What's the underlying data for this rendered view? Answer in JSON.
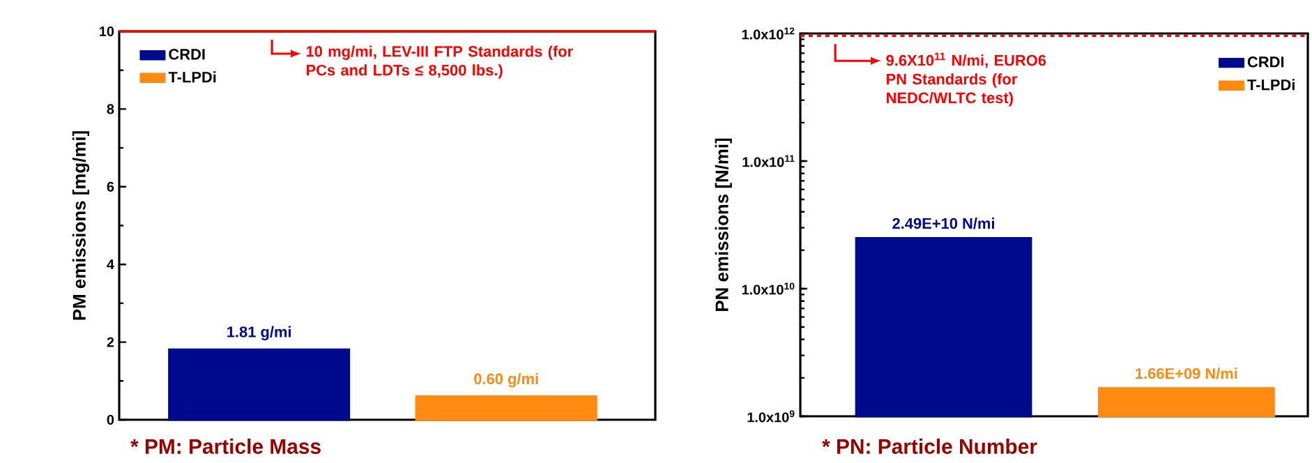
{
  "chart_data": [
    {
      "type": "bar",
      "ylabel": "PM emissions [mg/mi]",
      "categories": [
        null,
        null
      ],
      "series": [
        {
          "name": "CRDI",
          "color": "#000a8c",
          "values": [
            1.81,
            null
          ],
          "value_labels": [
            "1.81 g/mi",
            null
          ]
        },
        {
          "name": "T-LPDi",
          "color": "#ff8a12",
          "values": [
            null,
            0.6
          ],
          "value_labels": [
            null,
            "0.60 g/mi"
          ]
        }
      ],
      "ylim": [
        0,
        10
      ],
      "yticks": [
        0,
        2,
        4,
        6,
        8,
        10
      ],
      "ref_lines": [
        {
          "axis": "y",
          "value": 10,
          "label": "10 mg/mi, LEV-III FTP Standards (for PCs and LDTs ≤ 8,500 lbs.)",
          "color": "#ff0000",
          "line_style": "solid"
        }
      ],
      "annotations": [
        "* PM: Particle Mass"
      ],
      "legend": "top left"
    },
    {
      "type": "bar",
      "ylabel": "PN emissions [N/mi]",
      "categories": [
        null,
        null
      ],
      "series": [
        {
          "name": "CRDI",
          "color": "#000a8c",
          "values": [
            24900000000.0,
            null
          ]
        },
        {
          "name": "T-LPDi",
          "color": "#ff8a12",
          "values": [
            null,
            1660000000.0
          ]
        }
      ],
      "log": true,
      "ylim": [
        1000000000.0,
        1000000000000.0
      ],
      "yticks": [
        {
          "value": 1000000000.0,
          "label": "1.0x10$^{9}$"
        },
        {
          "value": 10000000000.0,
          "label": "1.0x10$^{10}$"
        },
        {
          "value": 100000000000.0,
          "label": "1.0x10$^{11}$"
        },
        {
          "value": 1000000000000.0,
          "label": "1.0x10$^{12}$"
        }
      ],
      "ref_lines": [
        {
          "axis": "y",
          "value": 960000000000.0,
          "label": "9.6X10$^{11}$ N/mi, EURO6 PN Standards (for NEDC/WLTC test)",
          "color": "#ff0000",
          "line_style": "dashed"
        }
      ],
      "annotations": [
        {
          "text": "2.49E+10 N/mi",
          "y": 24900000000.0
        },
        {
          "text": "1.66E+09 N/mi",
          "y": 1660000000.0
        },
        "* PN: Particle Number"
      ],
      "legend": "top right"
    }
  ]
}
